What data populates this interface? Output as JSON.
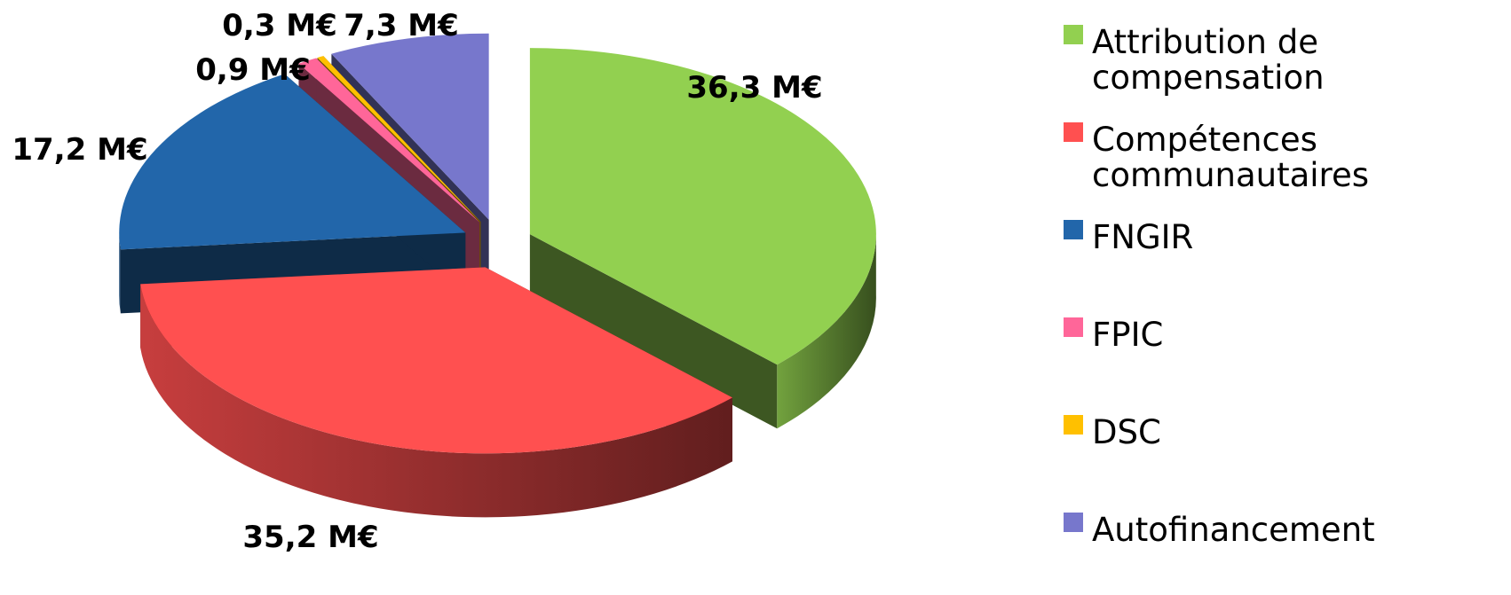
{
  "chart_data": {
    "type": "pie",
    "title": "",
    "three_d": true,
    "exploded": true,
    "legend_position": "right",
    "unit": "M€",
    "slices": [
      {
        "category": "Attribution de compensation",
        "legend_lines": [
          "Attribution de",
          "compensation"
        ],
        "value": 36.3,
        "label": "36,3 M€",
        "color": "#92D050"
      },
      {
        "category": "Compétences communautaires",
        "legend_lines": [
          "Compétences",
          "communautaires"
        ],
        "value": 35.2,
        "label": "35,2 M€",
        "color": "#FF5050"
      },
      {
        "category": "FNGIR",
        "legend_lines": [
          "FNGIR"
        ],
        "value": 17.2,
        "label": "17,2 M€",
        "color": "#2266AA"
      },
      {
        "category": "FPIC",
        "legend_lines": [
          "FPIC"
        ],
        "value": 0.9,
        "label": "0,9 M€",
        "color": "#FF6699"
      },
      {
        "category": "DSC",
        "legend_lines": [
          "DSC"
        ],
        "value": 0.3,
        "label": "0,3 M€",
        "color": "#FFC000"
      },
      {
        "category": "Autofinancement",
        "legend_lines": [
          "Autofinancement"
        ],
        "value": 7.3,
        "label": "7,3 M€",
        "color": "#7777CC"
      }
    ]
  }
}
